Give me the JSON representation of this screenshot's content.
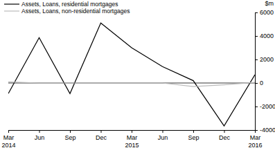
{
  "chart_data": {
    "type": "line",
    "y_label": "$m",
    "categories": [
      "Mar 2014",
      "Jun",
      "Sep",
      "Dec",
      "Mar 2015",
      "Jun",
      "Sep",
      "Dec",
      "Mar 2016"
    ],
    "series": [
      {
        "name": "Assets, Loans, residential mortgages",
        "color": "#000000",
        "values": [
          -900,
          3850,
          -900,
          5100,
          3000,
          1400,
          200,
          -3650,
          700
        ]
      },
      {
        "name": "Assets, Loans, non-residential mortgages",
        "color": "#bbbbbb",
        "values": [
          100,
          0,
          0,
          0,
          0,
          0,
          -300,
          -150,
          50
        ]
      }
    ],
    "ylim": [
      -4000,
      6000
    ],
    "yticks": [
      -4000,
      -2000,
      0,
      2000,
      4000,
      6000
    ],
    "grid": false,
    "legend": "top-left"
  }
}
